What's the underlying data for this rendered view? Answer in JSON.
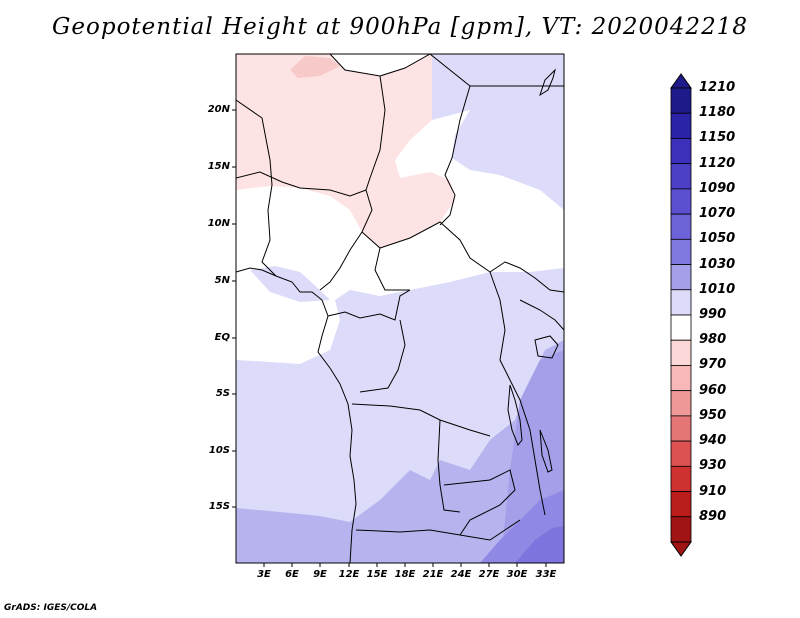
{
  "title": "Geopotential Height at 900hPa [gpm], VT: 2020042218",
  "credit": "GrADS: IGES/COLA",
  "map": {
    "lat_labels": [
      "20N",
      "15N",
      "10N",
      "5N",
      "EQ",
      "5S",
      "10S",
      "15S"
    ],
    "lon_labels": [
      "3E",
      "6E",
      "9E",
      "12E",
      "15E",
      "18E",
      "21E",
      "24E",
      "27E",
      "30E",
      "33E"
    ]
  },
  "colorbar": {
    "levels": [
      "1210",
      "1180",
      "1150",
      "1120",
      "1090",
      "1070",
      "1050",
      "1030",
      "1010",
      "990",
      "980",
      "970",
      "960",
      "950",
      "940",
      "930",
      "910",
      "890"
    ],
    "colors": [
      "#1f1a8a",
      "#2a23a8",
      "#3b30bb",
      "#4b40c6",
      "#5b51d0",
      "#6c63d9",
      "#8079e0",
      "#a59fe9",
      "#dcdcfa",
      "#ffffff",
      "#fdd8d8",
      "#f6b8b8",
      "#ee9898",
      "#e57676",
      "#dc5252",
      "#cf3030",
      "#bb1d1d",
      "#a01414"
    ]
  }
}
